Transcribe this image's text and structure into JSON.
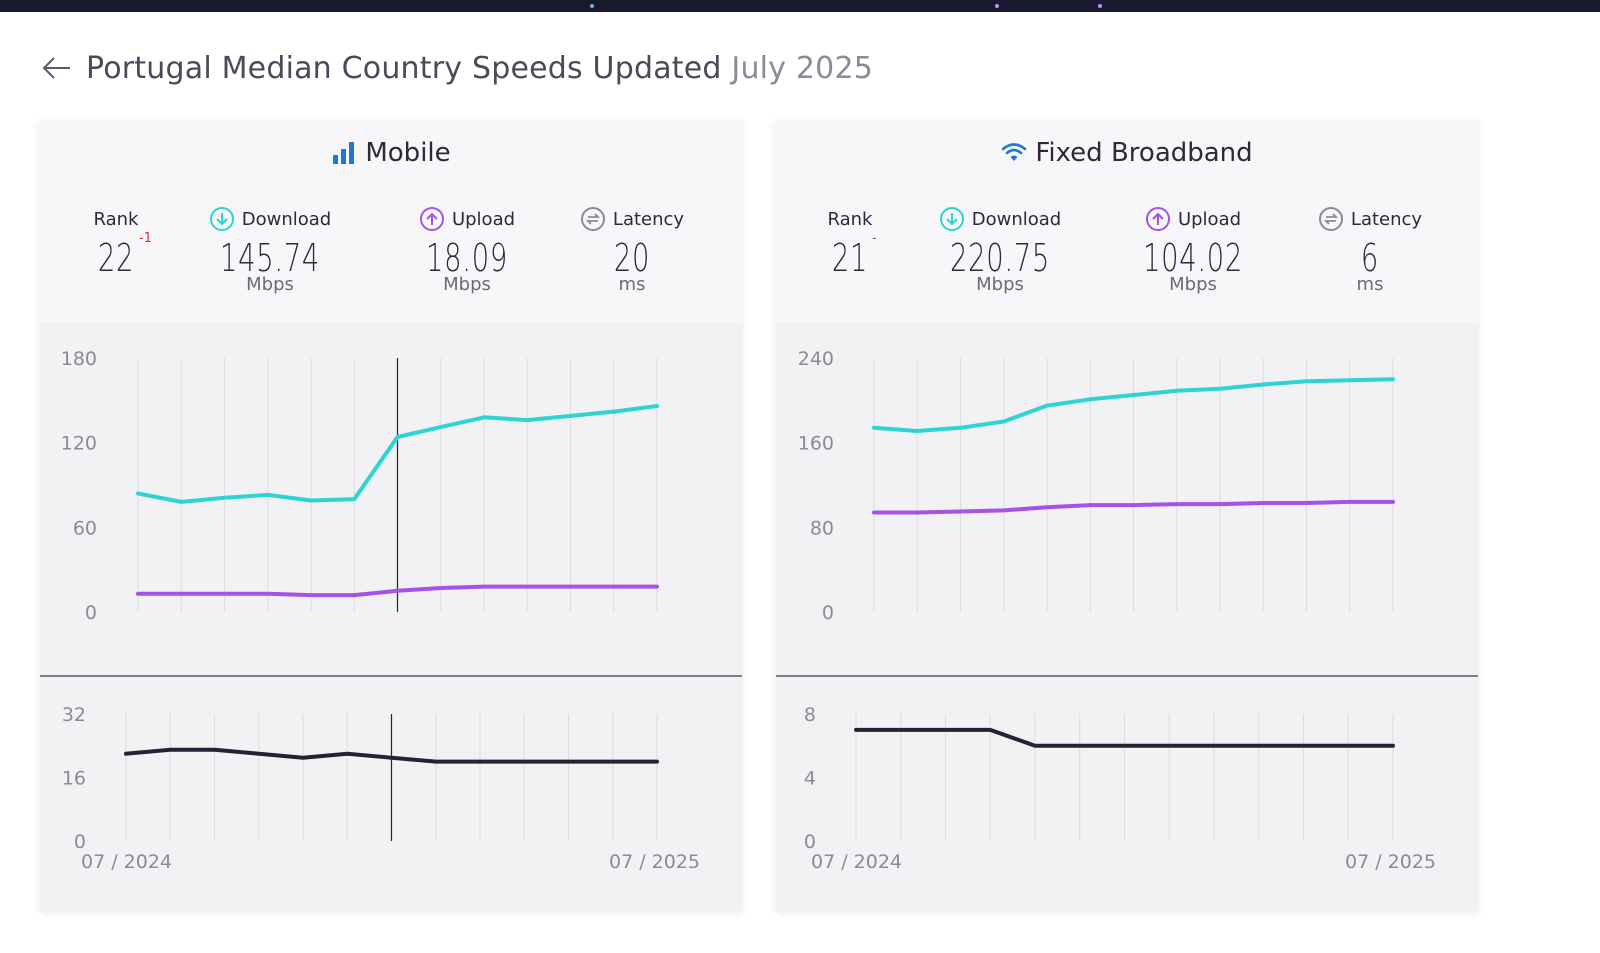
{
  "header": {
    "title_country": "Portugal Median Country Speeds Updated",
    "title_date": "July 2025"
  },
  "colors": {
    "download": "#2ed3d3",
    "upload": "#a452e8",
    "latency": "#232336",
    "mobile_icon": "#1e78d4",
    "fixed_icon": "#1e78d4"
  },
  "mobile": {
    "title": "Mobile",
    "rank_label": "Rank",
    "rank": "22",
    "rank_change": "-1",
    "download_label": "Download",
    "download": "145.74",
    "download_unit": "Mbps",
    "upload_label": "Upload",
    "upload": "18.09",
    "upload_unit": "Mbps",
    "latency_label": "Latency",
    "latency": "20",
    "latency_unit": "ms"
  },
  "fixed": {
    "title": "Fixed Broadband",
    "rank_label": "Rank",
    "rank": "21",
    "rank_change": "-",
    "download_label": "Download",
    "download": "220.75",
    "download_unit": "Mbps",
    "upload_label": "Upload",
    "upload": "104.02",
    "upload_unit": "Mbps",
    "latency_label": "Latency",
    "latency": "6",
    "latency_unit": "ms"
  },
  "chart_data": [
    {
      "type": "line",
      "x_labels": [
        "07 / 2024",
        "07 / 2025"
      ],
      "speed": {
        "ylim": [
          0,
          180
        ],
        "yticks": [
          0,
          60,
          120,
          180
        ],
        "series": [
          {
            "key": "download",
            "values": [
              84,
              78,
              81,
              83,
              79,
              80,
              124,
              131,
              138,
              136,
              139,
              142,
              146
            ]
          },
          {
            "key": "upload",
            "values": [
              13,
              13,
              13,
              13,
              12,
              12,
              15,
              17,
              18,
              18,
              18,
              18,
              18
            ]
          }
        ],
        "cursor_index": 6
      },
      "latency": {
        "ylim": [
          0,
          32
        ],
        "yticks": [
          0,
          16,
          32
        ],
        "series": [
          {
            "key": "latency",
            "values": [
              22,
              23,
              23,
              22,
              21,
              22,
              21,
              20,
              20,
              20,
              20,
              20,
              20
            ]
          }
        ],
        "cursor_index": 6
      }
    },
    {
      "type": "line",
      "x_labels": [
        "07 / 2024",
        "07 / 2025"
      ],
      "speed": {
        "ylim": [
          0,
          240
        ],
        "yticks": [
          0,
          80,
          160,
          240
        ],
        "series": [
          {
            "key": "download",
            "values": [
              174,
              171,
              174,
              180,
              195,
              201,
              205,
              209,
              211,
              215,
              218,
              219,
              220
            ]
          },
          {
            "key": "upload",
            "values": [
              94,
              94,
              95,
              96,
              99,
              101,
              101,
              102,
              102,
              103,
              103,
              104,
              104
            ]
          }
        ]
      },
      "latency": {
        "ylim": [
          0,
          8
        ],
        "yticks": [
          0,
          4,
          8
        ],
        "series": [
          {
            "key": "latency",
            "values": [
              7,
              7,
              7,
              7,
              6,
              6,
              6,
              6,
              6,
              6,
              6,
              6,
              6
            ]
          }
        ]
      }
    }
  ]
}
